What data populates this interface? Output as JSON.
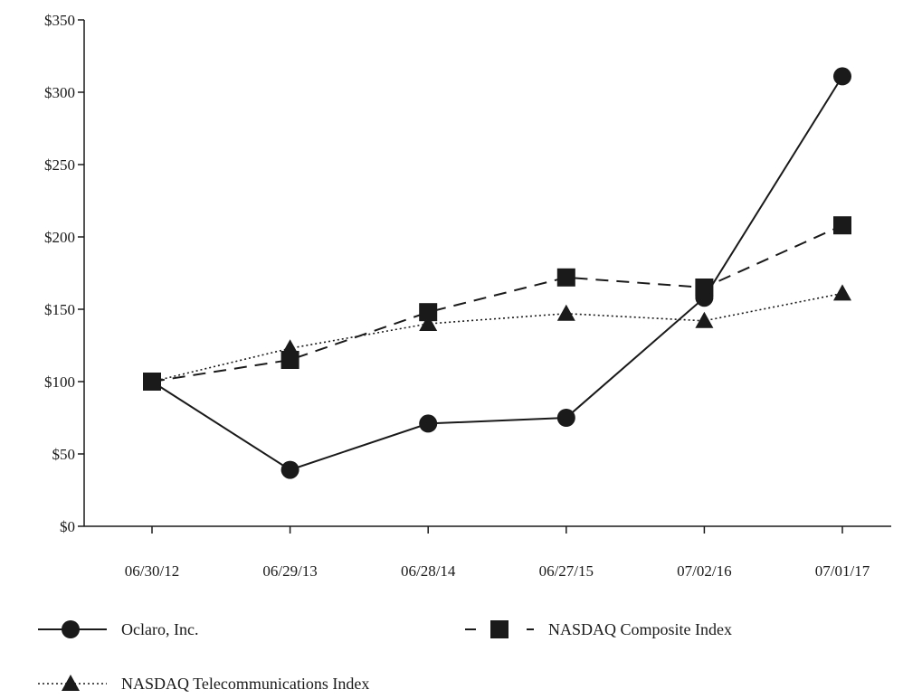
{
  "chart_data": {
    "type": "line",
    "title": "",
    "xlabel": "",
    "ylabel": "",
    "categories": [
      "06/30/12",
      "06/29/13",
      "06/28/14",
      "06/27/15",
      "07/02/16",
      "07/01/17"
    ],
    "y_tick_labels": [
      "$0",
      "$50",
      "$100",
      "$150",
      "$200",
      "$250",
      "$300",
      "$350"
    ],
    "y_ticks": [
      0,
      50,
      100,
      150,
      200,
      250,
      300,
      350
    ],
    "ylim": [
      0,
      350
    ],
    "grid": false,
    "legend_placement": "bottom",
    "series": [
      {
        "name": "Oclaro, Inc.",
        "marker": "circle",
        "line_style": "solid",
        "color": "#1a1a1a",
        "values": [
          100,
          39,
          71,
          75,
          158,
          311
        ]
      },
      {
        "name": "NASDAQ Composite Index",
        "marker": "square",
        "line_style": "dashed",
        "color": "#1a1a1a",
        "values": [
          100,
          115,
          148,
          172,
          165,
          208
        ]
      },
      {
        "name": "NASDAQ Telecommunications Index",
        "marker": "triangle",
        "line_style": "dotted",
        "color": "#1a1a1a",
        "values": [
          100,
          123,
          140,
          147,
          142,
          161
        ]
      }
    ]
  }
}
